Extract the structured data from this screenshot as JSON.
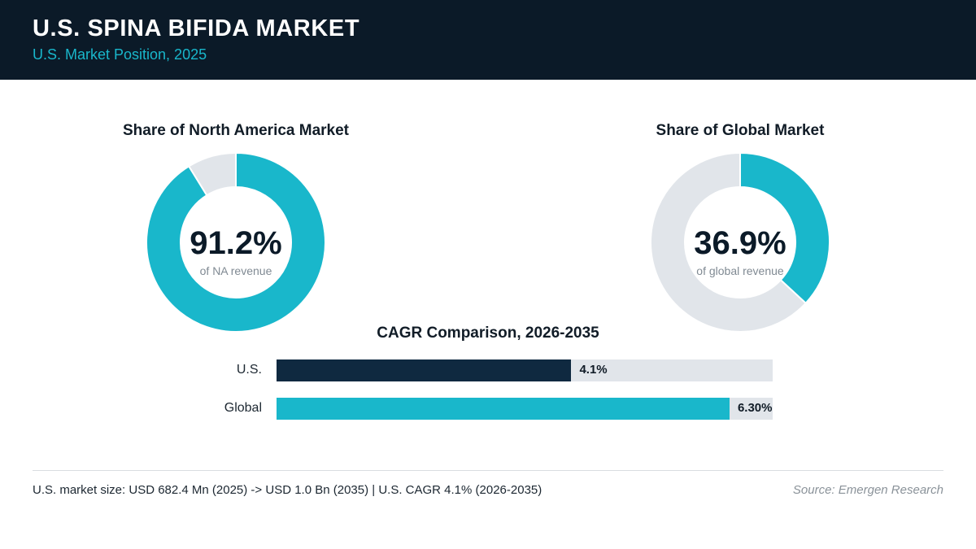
{
  "header": {
    "title": "U.S. SPINA BIFIDA MARKET",
    "subtitle": "U.S. Market Position, 2025"
  },
  "colors": {
    "header_bg": "#0b1a28",
    "accent": "#19b7cb",
    "dark_bar": "#0f2940",
    "track": "#e1e5ea"
  },
  "chart_data": [
    {
      "type": "pie",
      "variant": "donut",
      "title": "Share of North America Market",
      "value_label": "91.2%",
      "caption": "of NA revenue",
      "values": [
        91.2,
        8.8
      ],
      "colors": [
        "#19b7cb",
        "#e1e5ea"
      ]
    },
    {
      "type": "pie",
      "variant": "donut",
      "title": "Share of Global Market",
      "value_label": "36.9%",
      "caption": "of global revenue",
      "values": [
        36.9,
        63.1
      ],
      "colors": [
        "#19b7cb",
        "#e1e5ea"
      ]
    },
    {
      "type": "bar",
      "orientation": "horizontal",
      "title": "CAGR Comparison, 2026-2035",
      "categories": [
        "U.S.",
        "Global"
      ],
      "values": [
        4.1,
        6.3
      ],
      "value_labels": [
        "4.1%",
        "6.30%"
      ],
      "xlim": [
        0,
        6.9
      ],
      "colors": [
        "#0f2940",
        "#19b7cb"
      ]
    }
  ],
  "footer": {
    "summary": "U.S. market size: USD 682.4 Mn (2025) -> USD 1.0 Bn (2035)  |  U.S. CAGR 4.1% (2026-2035)",
    "source": "Source: Emergen Research"
  }
}
